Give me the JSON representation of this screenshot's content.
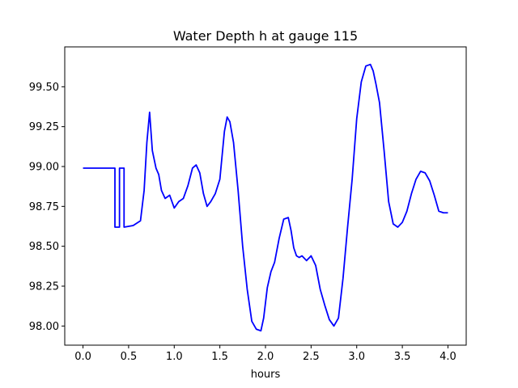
{
  "chart_data": {
    "type": "line",
    "title": "Water Depth h at gauge 115",
    "xlabel": "hours",
    "ylabel": "",
    "xlim": [
      -0.2,
      4.2
    ],
    "ylim": [
      97.88,
      99.75
    ],
    "xticks": [
      0.0,
      0.5,
      1.0,
      1.5,
      2.0,
      2.5,
      3.0,
      3.5,
      4.0
    ],
    "xtick_labels": [
      "0.0",
      "0.5",
      "1.0",
      "1.5",
      "2.0",
      "2.5",
      "3.0",
      "3.5",
      "4.0"
    ],
    "yticks": [
      98.0,
      98.25,
      98.5,
      98.75,
      99.0,
      99.25,
      99.5
    ],
    "ytick_labels": [
      "98.00",
      "98.25",
      "98.50",
      "98.75",
      "99.00",
      "99.25",
      "99.50"
    ],
    "grid": false,
    "series": [
      {
        "name": "",
        "color": "#0000ff",
        "x": [
          0.0,
          0.35,
          0.35,
          0.4,
          0.4,
          0.45,
          0.45,
          0.55,
          0.63,
          0.67,
          0.7,
          0.73,
          0.76,
          0.8,
          0.83,
          0.86,
          0.9,
          0.95,
          1.0,
          1.05,
          1.1,
          1.15,
          1.2,
          1.24,
          1.28,
          1.32,
          1.36,
          1.4,
          1.45,
          1.5,
          1.55,
          1.58,
          1.61,
          1.65,
          1.7,
          1.75,
          1.8,
          1.85,
          1.9,
          1.95,
          1.98,
          2.02,
          2.06,
          2.1,
          2.15,
          2.2,
          2.25,
          2.28,
          2.31,
          2.34,
          2.37,
          2.4,
          2.45,
          2.5,
          2.55,
          2.6,
          2.65,
          2.7,
          2.75,
          2.8,
          2.85,
          2.9,
          2.95,
          3.0,
          3.05,
          3.1,
          3.15,
          3.18,
          3.21,
          3.25,
          3.3,
          3.35,
          3.4,
          3.45,
          3.5,
          3.55,
          3.6,
          3.65,
          3.7,
          3.75,
          3.8,
          3.85,
          3.9,
          3.95,
          4.0
        ],
        "y": [
          98.99,
          98.99,
          98.62,
          98.62,
          98.99,
          98.99,
          98.62,
          98.63,
          98.66,
          98.85,
          99.15,
          99.34,
          99.1,
          98.99,
          98.95,
          98.85,
          98.8,
          98.82,
          98.74,
          98.78,
          98.8,
          98.88,
          98.99,
          99.01,
          98.96,
          98.83,
          98.75,
          98.78,
          98.83,
          98.92,
          99.22,
          99.31,
          99.28,
          99.15,
          98.85,
          98.5,
          98.23,
          98.03,
          97.98,
          97.97,
          98.05,
          98.24,
          98.34,
          98.4,
          98.55,
          98.67,
          98.68,
          98.6,
          98.49,
          98.44,
          98.43,
          98.44,
          98.41,
          98.44,
          98.38,
          98.23,
          98.13,
          98.04,
          98.0,
          98.05,
          98.3,
          98.62,
          98.92,
          99.3,
          99.53,
          99.63,
          99.64,
          99.6,
          99.52,
          99.4,
          99.1,
          98.78,
          98.64,
          98.62,
          98.65,
          98.72,
          98.83,
          98.92,
          98.97,
          98.96,
          98.91,
          98.82,
          98.72,
          98.71,
          98.71
        ]
      }
    ]
  }
}
